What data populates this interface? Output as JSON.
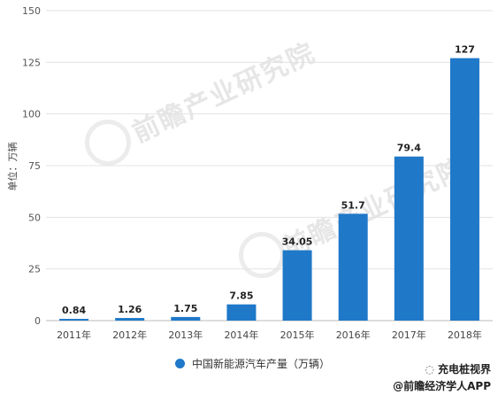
{
  "chart_data": {
    "type": "bar",
    "categories": [
      "2011年",
      "2012年",
      "2013年",
      "2014年",
      "2015年",
      "2016年",
      "2017年",
      "2018年"
    ],
    "values": [
      0.84,
      1.26,
      1.75,
      7.85,
      34.05,
      51.7,
      79.4,
      127
    ],
    "value_labels": [
      "0.84",
      "1.26",
      "1.75",
      "7.85",
      "34.05",
      "51.7",
      "79.4",
      "127"
    ],
    "series": [
      {
        "name": "中国新能源汽车产量（万辆）",
        "values": [
          0.84,
          1.26,
          1.75,
          7.85,
          34.05,
          51.7,
          79.4,
          127
        ]
      }
    ],
    "ylabel": "单位：万辆",
    "ylim": [
      0,
      150
    ],
    "yticks": [
      "0",
      "25",
      "50",
      "75",
      "100",
      "125",
      "150"
    ],
    "grid": true,
    "legend_position": "bottom",
    "bar_color": "#1f78c8"
  },
  "legend": {
    "label": "中国新能源汽车产量（万辆）"
  },
  "watermark": {
    "text": "前瞻产业研究院"
  },
  "footer": {
    "channel": "充电桩视界",
    "source": "@前瞻经济学人APP"
  }
}
